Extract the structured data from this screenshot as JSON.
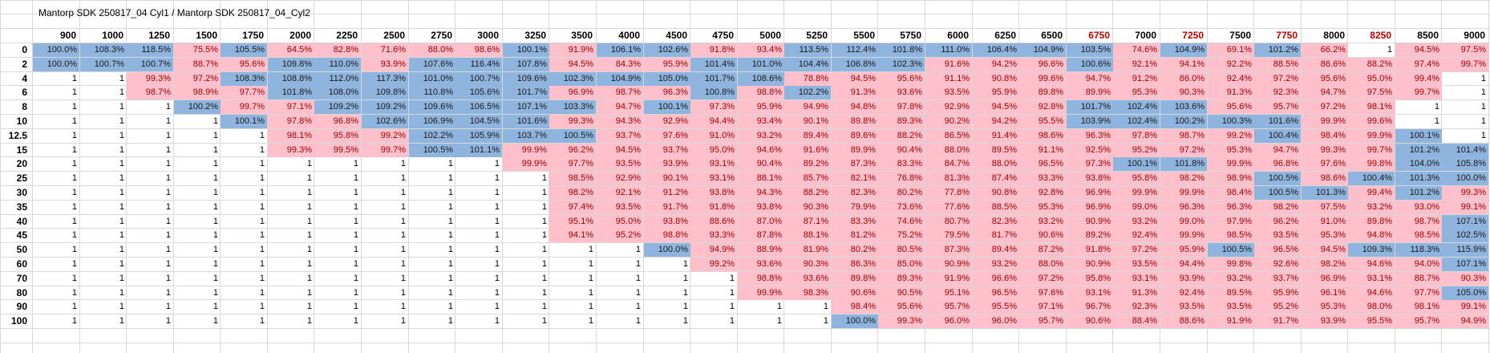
{
  "sheet": {
    "title": "Mantorp SDK 250817_04 Cyl1 / Mantorp SDK 250817_04_Cyl2",
    "columns": [
      "900",
      "1000",
      "1250",
      "1500",
      "1750",
      "2000",
      "2250",
      "2500",
      "2750",
      "3000",
      "3250",
      "3500",
      "4000",
      "4500",
      "4750",
      "5000",
      "5250",
      "5500",
      "5750",
      "6000",
      "6250",
      "6500",
      "6750",
      "7000",
      "7250",
      "7500",
      "7750",
      "8000",
      "8250",
      "8500",
      "9000"
    ],
    "red_columns": [
      "6750",
      "7250",
      "7750",
      "8250"
    ],
    "rows": [
      {
        "label": "0",
        "cells": [
          "100.0%",
          "108.3%",
          "118.5%",
          "75.5%",
          "105.5%",
          "64.5%",
          "82.8%",
          "71.6%",
          "88.0%",
          "98.6%",
          "100.1%",
          "91.9%",
          "106.1%",
          "102.6%",
          "91.8%",
          "93.4%",
          "113.5%",
          "112.4%",
          "101.8%",
          "111.0%",
          "106.4%",
          "104.9%",
          "103.5%",
          "74.6%",
          "104.9%",
          "69.1%",
          "101.2%",
          "66.2%",
          "1",
          "94.5%",
          "97.5%"
        ]
      },
      {
        "label": "2",
        "cells": [
          "100.0%",
          "100.7%",
          "100.7%",
          "88.7%",
          "95.6%",
          "109.8%",
          "110.0%",
          "93.9%",
          "107.6%",
          "116.4%",
          "107.8%",
          "94.5%",
          "84.3%",
          "95.9%",
          "101.4%",
          "101.0%",
          "104.4%",
          "106.8%",
          "102.3%",
          "91.6%",
          "94.2%",
          "96.6%",
          "100.6%",
          "92.1%",
          "94.1%",
          "92.2%",
          "88.5%",
          "86.6%",
          "88.2%",
          "97.4%",
          "99.7%"
        ]
      },
      {
        "label": "4",
        "cells": [
          "1",
          "1",
          "99.3%",
          "97.2%",
          "108.3%",
          "108.8%",
          "112.0%",
          "117.3%",
          "101.0%",
          "100.7%",
          "109.6%",
          "102.3%",
          "104.9%",
          "105.0%",
          "101.7%",
          "108.6%",
          "78.8%",
          "94.5%",
          "95.6%",
          "91.1%",
          "90.8%",
          "99.6%",
          "94.7%",
          "91.2%",
          "86.0%",
          "92.4%",
          "97.2%",
          "95.6%",
          "95.0%",
          "99.4%",
          "1"
        ]
      },
      {
        "label": "6",
        "cells": [
          "1",
          "1",
          "98.7%",
          "98.9%",
          "97.7%",
          "101.8%",
          "108.0%",
          "109.8%",
          "110.8%",
          "105.6%",
          "101.7%",
          "96.9%",
          "98.7%",
          "96.3%",
          "100.8%",
          "98.8%",
          "102.2%",
          "91.3%",
          "93.6%",
          "93.5%",
          "95.9%",
          "89.8%",
          "89.9%",
          "95.3%",
          "90.3%",
          "91.3%",
          "92.3%",
          "94.7%",
          "97.5%",
          "99.7%",
          "1"
        ]
      },
      {
        "label": "8",
        "cells": [
          "1",
          "1",
          "1",
          "100.2%",
          "99.7%",
          "97.1%",
          "109.2%",
          "109.2%",
          "109.6%",
          "106.5%",
          "107.1%",
          "103.3%",
          "94.7%",
          "100.1%",
          "97.3%",
          "95.9%",
          "94.9%",
          "94.8%",
          "97.8%",
          "92.9%",
          "94.5%",
          "92.8%",
          "101.7%",
          "102.4%",
          "103.6%",
          "95.6%",
          "95.7%",
          "97.2%",
          "98.1%",
          "1",
          "1"
        ]
      },
      {
        "label": "10",
        "cells": [
          "1",
          "1",
          "1",
          "1",
          "100.1%",
          "97.8%",
          "96.8%",
          "102.6%",
          "106.9%",
          "104.5%",
          "101.6%",
          "99.3%",
          "94.3%",
          "92.9%",
          "94.4%",
          "93.4%",
          "90.1%",
          "89.8%",
          "89.3%",
          "90.2%",
          "94.2%",
          "95.5%",
          "103.9%",
          "102.4%",
          "100.2%",
          "100.3%",
          "101.6%",
          "99.9%",
          "99.6%",
          "1",
          "1"
        ]
      },
      {
        "label": "12.5",
        "cells": [
          "1",
          "1",
          "1",
          "1",
          "1",
          "98.1%",
          "95.8%",
          "99.2%",
          "102.2%",
          "105.9%",
          "103.7%",
          "100.5%",
          "93.7%",
          "97.6%",
          "91.0%",
          "93.2%",
          "89.4%",
          "89.6%",
          "88.2%",
          "86.5%",
          "91.4%",
          "98.6%",
          "96.3%",
          "97.8%",
          "98.7%",
          "99.2%",
          "100.4%",
          "98.4%",
          "99.9%",
          "100.1%",
          "1"
        ]
      },
      {
        "label": "15",
        "cells": [
          "1",
          "1",
          "1",
          "1",
          "1",
          "99.3%",
          "99.5%",
          "99.7%",
          "100.5%",
          "101.1%",
          "99.9%",
          "96.2%",
          "94.5%",
          "93.7%",
          "95.0%",
          "94.6%",
          "91.6%",
          "89.9%",
          "90.4%",
          "88.0%",
          "89.5%",
          "91.1%",
          "92.5%",
          "95.2%",
          "97.2%",
          "95.3%",
          "94.7%",
          "99.3%",
          "99.7%",
          "101.2%",
          "101.4%"
        ]
      },
      {
        "label": "20",
        "cells": [
          "1",
          "1",
          "1",
          "1",
          "1",
          "1",
          "1",
          "1",
          "1",
          "1",
          "99.9%",
          "97.7%",
          "93.5%",
          "93.9%",
          "93.1%",
          "90.4%",
          "89.2%",
          "87.3%",
          "83.3%",
          "84.7%",
          "88.0%",
          "96.5%",
          "97.3%",
          "100.1%",
          "101.8%",
          "99.9%",
          "96.8%",
          "97.6%",
          "99.8%",
          "104.0%",
          "105.8%"
        ]
      },
      {
        "label": "25",
        "cells": [
          "1",
          "1",
          "1",
          "1",
          "1",
          "1",
          "1",
          "1",
          "1",
          "1",
          "1",
          "98.5%",
          "92.9%",
          "90.1%",
          "93.1%",
          "88.1%",
          "85.7%",
          "82.1%",
          "76.8%",
          "81.3%",
          "87.4%",
          "93.3%",
          "93.8%",
          "95.8%",
          "98.2%",
          "98.9%",
          "100.5%",
          "98.6%",
          "100.4%",
          "101.3%",
          "100.0%"
        ]
      },
      {
        "label": "30",
        "cells": [
          "1",
          "1",
          "1",
          "1",
          "1",
          "1",
          "1",
          "1",
          "1",
          "1",
          "1",
          "98.2%",
          "92.1%",
          "91.2%",
          "93.8%",
          "94.3%",
          "88.2%",
          "82.3%",
          "80.2%",
          "77.8%",
          "90.8%",
          "92.8%",
          "96.9%",
          "99.9%",
          "99.9%",
          "98.4%",
          "100.5%",
          "101.3%",
          "99.4%",
          "101.2%",
          "99.3%"
        ]
      },
      {
        "label": "35",
        "cells": [
          "1",
          "1",
          "1",
          "1",
          "1",
          "1",
          "1",
          "1",
          "1",
          "1",
          "1",
          "97.4%",
          "93.5%",
          "91.7%",
          "91.8%",
          "93.8%",
          "90.3%",
          "79.9%",
          "73.6%",
          "77.6%",
          "88.5%",
          "95.3%",
          "96.9%",
          "99.0%",
          "96.3%",
          "96.3%",
          "98.2%",
          "97.5%",
          "93.2%",
          "93.0%",
          "99.1%"
        ]
      },
      {
        "label": "40",
        "cells": [
          "1",
          "1",
          "1",
          "1",
          "1",
          "1",
          "1",
          "1",
          "1",
          "1",
          "1",
          "95.1%",
          "95.0%",
          "93.8%",
          "88.6%",
          "87.0%",
          "87.1%",
          "83.3%",
          "74.6%",
          "80.7%",
          "82.3%",
          "93.2%",
          "90.9%",
          "93.2%",
          "99.0%",
          "97.9%",
          "96.2%",
          "91.0%",
          "89.8%",
          "98.7%",
          "107.1%"
        ]
      },
      {
        "label": "45",
        "cells": [
          "1",
          "1",
          "1",
          "1",
          "1",
          "1",
          "1",
          "1",
          "1",
          "1",
          "1",
          "94.1%",
          "95.2%",
          "98.8%",
          "93.3%",
          "87.8%",
          "88.1%",
          "81.2%",
          "75.2%",
          "79.5%",
          "81.7%",
          "90.6%",
          "89.2%",
          "92.4%",
          "99.9%",
          "98.5%",
          "93.5%",
          "95.3%",
          "94.8%",
          "98.5%",
          "102.5%"
        ]
      },
      {
        "label": "50",
        "cells": [
          "1",
          "1",
          "1",
          "1",
          "1",
          "1",
          "1",
          "1",
          "1",
          "1",
          "1",
          "1",
          "1",
          "100.0%",
          "94.9%",
          "88.9%",
          "81.9%",
          "80.2%",
          "80.5%",
          "87.3%",
          "89.4%",
          "87.2%",
          "91.8%",
          "97.2%",
          "95.9%",
          "100.5%",
          "96.5%",
          "94.5%",
          "109.3%",
          "118.3%",
          "115.9%"
        ]
      },
      {
        "label": "60",
        "cells": [
          "1",
          "1",
          "1",
          "1",
          "1",
          "1",
          "1",
          "1",
          "1",
          "1",
          "1",
          "1",
          "1",
          "1",
          "99.2%",
          "93.6%",
          "90.3%",
          "86.3%",
          "85.0%",
          "90.9%",
          "93.2%",
          "88.0%",
          "90.9%",
          "93.5%",
          "94.4%",
          "99.8%",
          "92.6%",
          "98.2%",
          "94.6%",
          "94.0%",
          "107.1%"
        ]
      },
      {
        "label": "70",
        "cells": [
          "1",
          "1",
          "1",
          "1",
          "1",
          "1",
          "1",
          "1",
          "1",
          "1",
          "1",
          "1",
          "1",
          "1",
          "1",
          "98.8%",
          "93.6%",
          "89.8%",
          "89.3%",
          "91.9%",
          "96.6%",
          "97.2%",
          "95.8%",
          "93.1%",
          "93.9%",
          "93.2%",
          "93.7%",
          "96.9%",
          "93.1%",
          "88.7%",
          "90.3%"
        ]
      },
      {
        "label": "80",
        "cells": [
          "1",
          "1",
          "1",
          "1",
          "1",
          "1",
          "1",
          "1",
          "1",
          "1",
          "1",
          "1",
          "1",
          "1",
          "1",
          "99.9%",
          "98.3%",
          "90.6%",
          "90.5%",
          "95.1%",
          "96.5%",
          "97.6%",
          "93.1%",
          "91.3%",
          "92.4%",
          "89.5%",
          "95.9%",
          "96.1%",
          "94.6%",
          "97.7%",
          "105.0%"
        ]
      },
      {
        "label": "90",
        "cells": [
          "1",
          "1",
          "1",
          "1",
          "1",
          "1",
          "1",
          "1",
          "1",
          "1",
          "1",
          "1",
          "1",
          "1",
          "1",
          "1",
          "1",
          "98.4%",
          "95.6%",
          "95.7%",
          "95.5%",
          "97.1%",
          "96.7%",
          "92.3%",
          "93.5%",
          "93.5%",
          "95.2%",
          "95.3%",
          "98.0%",
          "98.1%",
          "99.1%"
        ]
      },
      {
        "label": "100",
        "cells": [
          "1",
          "1",
          "1",
          "1",
          "1",
          "1",
          "1",
          "1",
          "1",
          "1",
          "1",
          "1",
          "1",
          "1",
          "1",
          "1",
          "1",
          "100.0%",
          "99.3%",
          "96.0%",
          "96.0%",
          "95.7%",
          "90.6%",
          "88.4%",
          "88.6%",
          "91.9%",
          "91.7%",
          "93.9%",
          "95.5%",
          "95.7%",
          "94.9%"
        ]
      }
    ],
    "colors": {
      "pink": "#ffc0cb",
      "blue": "#8fb4de",
      "grid": "#d8d8d8",
      "red_header": "#c00000"
    }
  }
}
